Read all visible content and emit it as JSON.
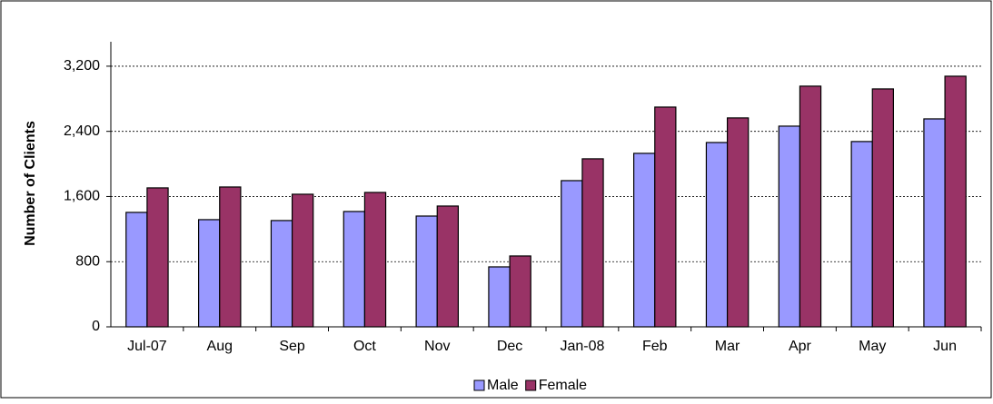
{
  "chart_data": {
    "type": "bar",
    "y_label": "Number of Clients",
    "categories": [
      "Jul-07",
      "Aug",
      "Sep",
      "Oct",
      "Nov",
      "Dec",
      "Jan-08",
      "Feb",
      "Mar",
      "Apr",
      "May",
      "Jun"
    ],
    "series": [
      {
        "name": "Male",
        "color": "#9999ff",
        "values": [
          1405,
          1316,
          1305,
          1416,
          1360,
          736,
          1795,
          2130,
          2263,
          2464,
          2275,
          2553
        ]
      },
      {
        "name": "Female",
        "color": "#993366",
        "values": [
          1706,
          1717,
          1628,
          1650,
          1483,
          870,
          2063,
          2698,
          2565,
          2955,
          2921,
          3077
        ]
      }
    ],
    "ylim": [
      0,
      3500
    ],
    "yticks": [
      0,
      {
        "value": 800,
        "label": "800"
      },
      {
        "value": 1600,
        "label": "1,600"
      },
      {
        "value": 2400,
        "label": "2,400"
      },
      {
        "value": 3200,
        "label": "3,200"
      }
    ],
    "grid": true,
    "legend": "bottom"
  }
}
